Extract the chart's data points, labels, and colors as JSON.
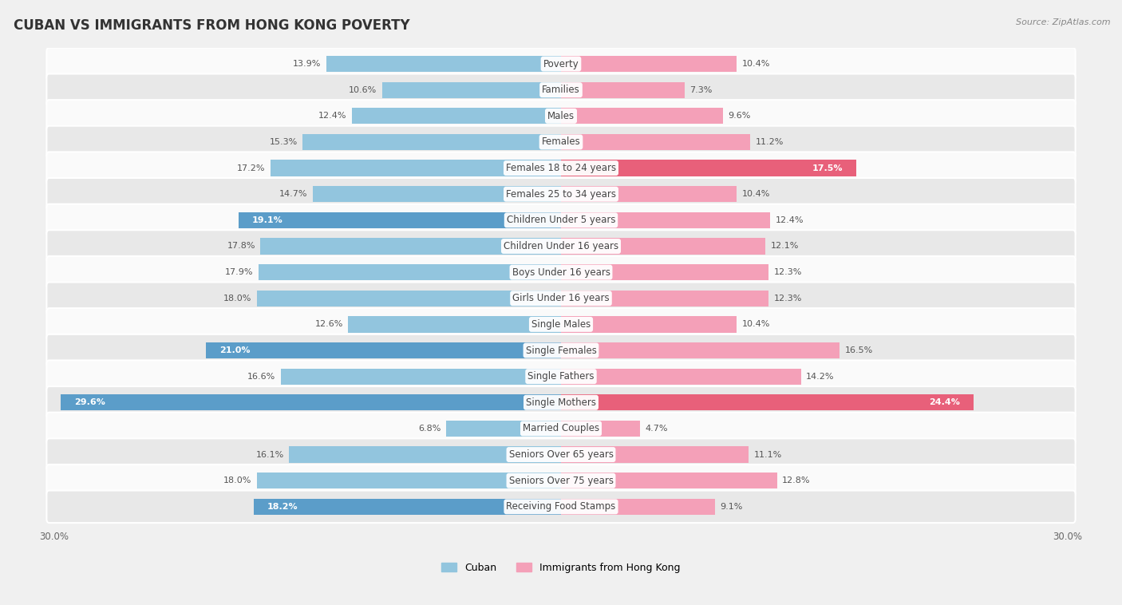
{
  "title": "CUBAN VS IMMIGRANTS FROM HONG KONG POVERTY",
  "source": "Source: ZipAtlas.com",
  "categories": [
    "Poverty",
    "Families",
    "Males",
    "Females",
    "Females 18 to 24 years",
    "Females 25 to 34 years",
    "Children Under 5 years",
    "Children Under 16 years",
    "Boys Under 16 years",
    "Girls Under 16 years",
    "Single Males",
    "Single Females",
    "Single Fathers",
    "Single Mothers",
    "Married Couples",
    "Seniors Over 65 years",
    "Seniors Over 75 years",
    "Receiving Food Stamps"
  ],
  "cuban_values": [
    13.9,
    10.6,
    12.4,
    15.3,
    17.2,
    14.7,
    19.1,
    17.8,
    17.9,
    18.0,
    12.6,
    21.0,
    16.6,
    29.6,
    6.8,
    16.1,
    18.0,
    18.2
  ],
  "hk_values": [
    10.4,
    7.3,
    9.6,
    11.2,
    17.5,
    10.4,
    12.4,
    12.1,
    12.3,
    12.3,
    10.4,
    16.5,
    14.2,
    24.4,
    4.7,
    11.1,
    12.8,
    9.1
  ],
  "cuban_color": "#92c5de",
  "hk_color": "#f4a0b8",
  "cuban_highlight_indices": [
    6,
    11,
    13,
    17
  ],
  "hk_highlight_indices": [
    4,
    13
  ],
  "cuban_highlight_color": "#5b9dc9",
  "hk_highlight_color": "#e8607a",
  "axis_limit": 30.0,
  "background_color": "#f0f0f0",
  "row_color_light": "#fafafa",
  "row_color_dark": "#e8e8e8",
  "label_fontsize": 8.5,
  "title_fontsize": 12,
  "value_fontsize": 8,
  "legend_labels": [
    "Cuban",
    "Immigrants from Hong Kong"
  ]
}
